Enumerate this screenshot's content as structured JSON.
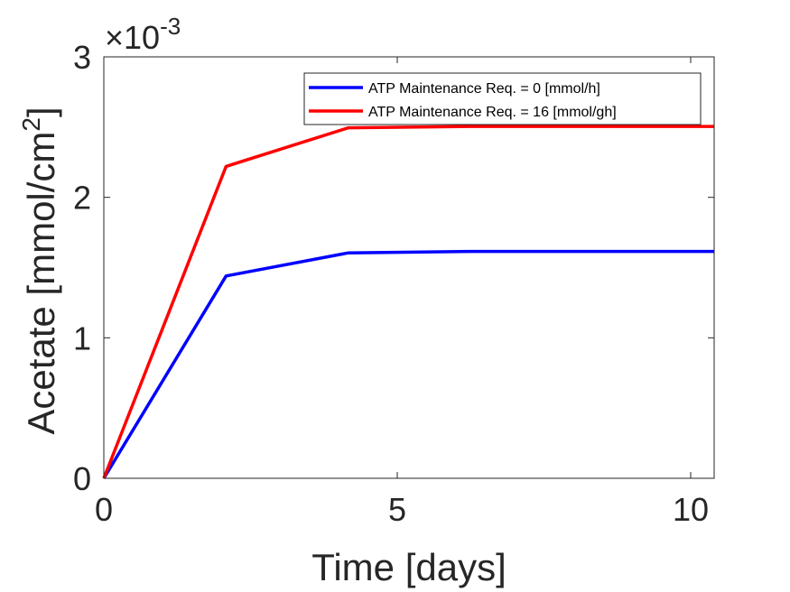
{
  "chart_data": {
    "type": "line",
    "xlabel": "Time [days]",
    "ylabel_main": "Acetate [mmol/cm",
    "ylabel_sup": "2",
    "ylabel_close": "]",
    "exponent_base": "×10",
    "exponent_power": "-3",
    "xlim": [
      0,
      10.4
    ],
    "ylim": [
      0,
      3
    ],
    "xticks": [
      0,
      5,
      10
    ],
    "xtick_labels": [
      "0",
      "5",
      "10"
    ],
    "yticks": [
      0,
      1,
      2,
      3
    ],
    "ytick_labels": [
      "0",
      "1",
      "2",
      "3"
    ],
    "grid": false,
    "legend_position": "top-right",
    "series": [
      {
        "name": "ATP Maintenance Req. = 0 [mmol/h]",
        "color": "#0000ff",
        "x": [
          0,
          2.083,
          4.167,
          6.25,
          8.333,
          10.4
        ],
        "y": [
          0,
          1.44,
          1.605,
          1.615,
          1.615,
          1.615
        ]
      },
      {
        "name": "ATP Maintenance Req. = 16 [mmol/gh]",
        "color": "#ff0000",
        "x": [
          0,
          2.083,
          4.167,
          6.25,
          8.333,
          10.4
        ],
        "y": [
          0,
          2.22,
          2.495,
          2.505,
          2.505,
          2.505
        ]
      }
    ]
  }
}
